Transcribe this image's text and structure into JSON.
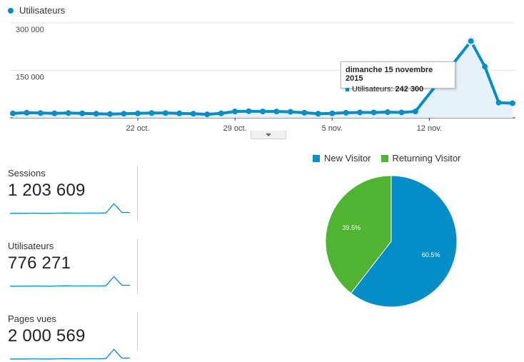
{
  "legend_top": {
    "label": "Utilisateurs",
    "color": "#058dc7"
  },
  "chart_data": [
    {
      "type": "line",
      "title": "",
      "series": [
        {
          "name": "Utilisateurs",
          "values": [
            14000,
            16000,
            15000,
            14000,
            15000,
            14000,
            13000,
            12000,
            13000,
            14000,
            15000,
            15000,
            14000,
            13000,
            11000,
            14000,
            20000,
            21000,
            20000,
            20000,
            19000,
            16000,
            13000,
            14000,
            16000,
            17000,
            17000,
            18000,
            17000,
            20000,
            242300,
            162000,
            48000,
            46000
          ]
        }
      ],
      "x": [
        "2015-10-13",
        "2015-10-14",
        "2015-10-15",
        "2015-10-16",
        "2015-10-17",
        "2015-10-18",
        "2015-10-19",
        "2015-10-20",
        "2015-10-21",
        "2015-10-22",
        "2015-10-23",
        "2015-10-24",
        "2015-10-25",
        "2015-10-26",
        "2015-10-27",
        "2015-10-28",
        "2015-10-29",
        "2015-10-30",
        "2015-10-31",
        "2015-11-01",
        "2015-11-02",
        "2015-11-03",
        "2015-11-04",
        "2015-11-05",
        "2015-11-06",
        "2015-11-07",
        "2015-11-08",
        "2015-11-09",
        "2015-11-10",
        "2015-11-11",
        "2015-11-15",
        "2015-11-16",
        "2015-11-17",
        "2015-11-18"
      ],
      "y_ticks": [
        "300 000",
        "150 000"
      ],
      "x_ticks": [
        "22 oct.",
        "29 oct.",
        "5 nov.",
        "12 nov."
      ],
      "ylim": [
        0,
        300000
      ],
      "grid": true,
      "tooltip": {
        "title": "dimanche 15 novembre 2015",
        "series": "Utilisateurs:",
        "value": "242 300"
      }
    },
    {
      "type": "pie",
      "series": [
        {
          "name": "New Visitor",
          "value": 60.5,
          "label": "60.5%",
          "color": "#058dc7"
        },
        {
          "name": "Returning Visitor",
          "value": 39.5,
          "label": "39.5%",
          "color": "#50b432"
        }
      ]
    }
  ],
  "metrics": [
    {
      "label": "Sessions",
      "value": "1 203 609",
      "spark": [
        2,
        2,
        2,
        2.2,
        2,
        2,
        2.2,
        2.4,
        2.2,
        2.2,
        2.3,
        2.2,
        2.5,
        14,
        3,
        3
      ]
    },
    {
      "label": "Utilisateurs",
      "value": "776 271",
      "spark": [
        2,
        2,
        2,
        2.2,
        2,
        2,
        2.2,
        2.4,
        2.2,
        2.2,
        2.3,
        2.2,
        2.5,
        14,
        3,
        3
      ]
    },
    {
      "label": "Pages vues",
      "value": "2 000 569",
      "spark": [
        2,
        2,
        2,
        2.2,
        2,
        2,
        2.2,
        2.4,
        2.2,
        2.2,
        2.3,
        2.2,
        2.5,
        14,
        3,
        3
      ]
    }
  ]
}
